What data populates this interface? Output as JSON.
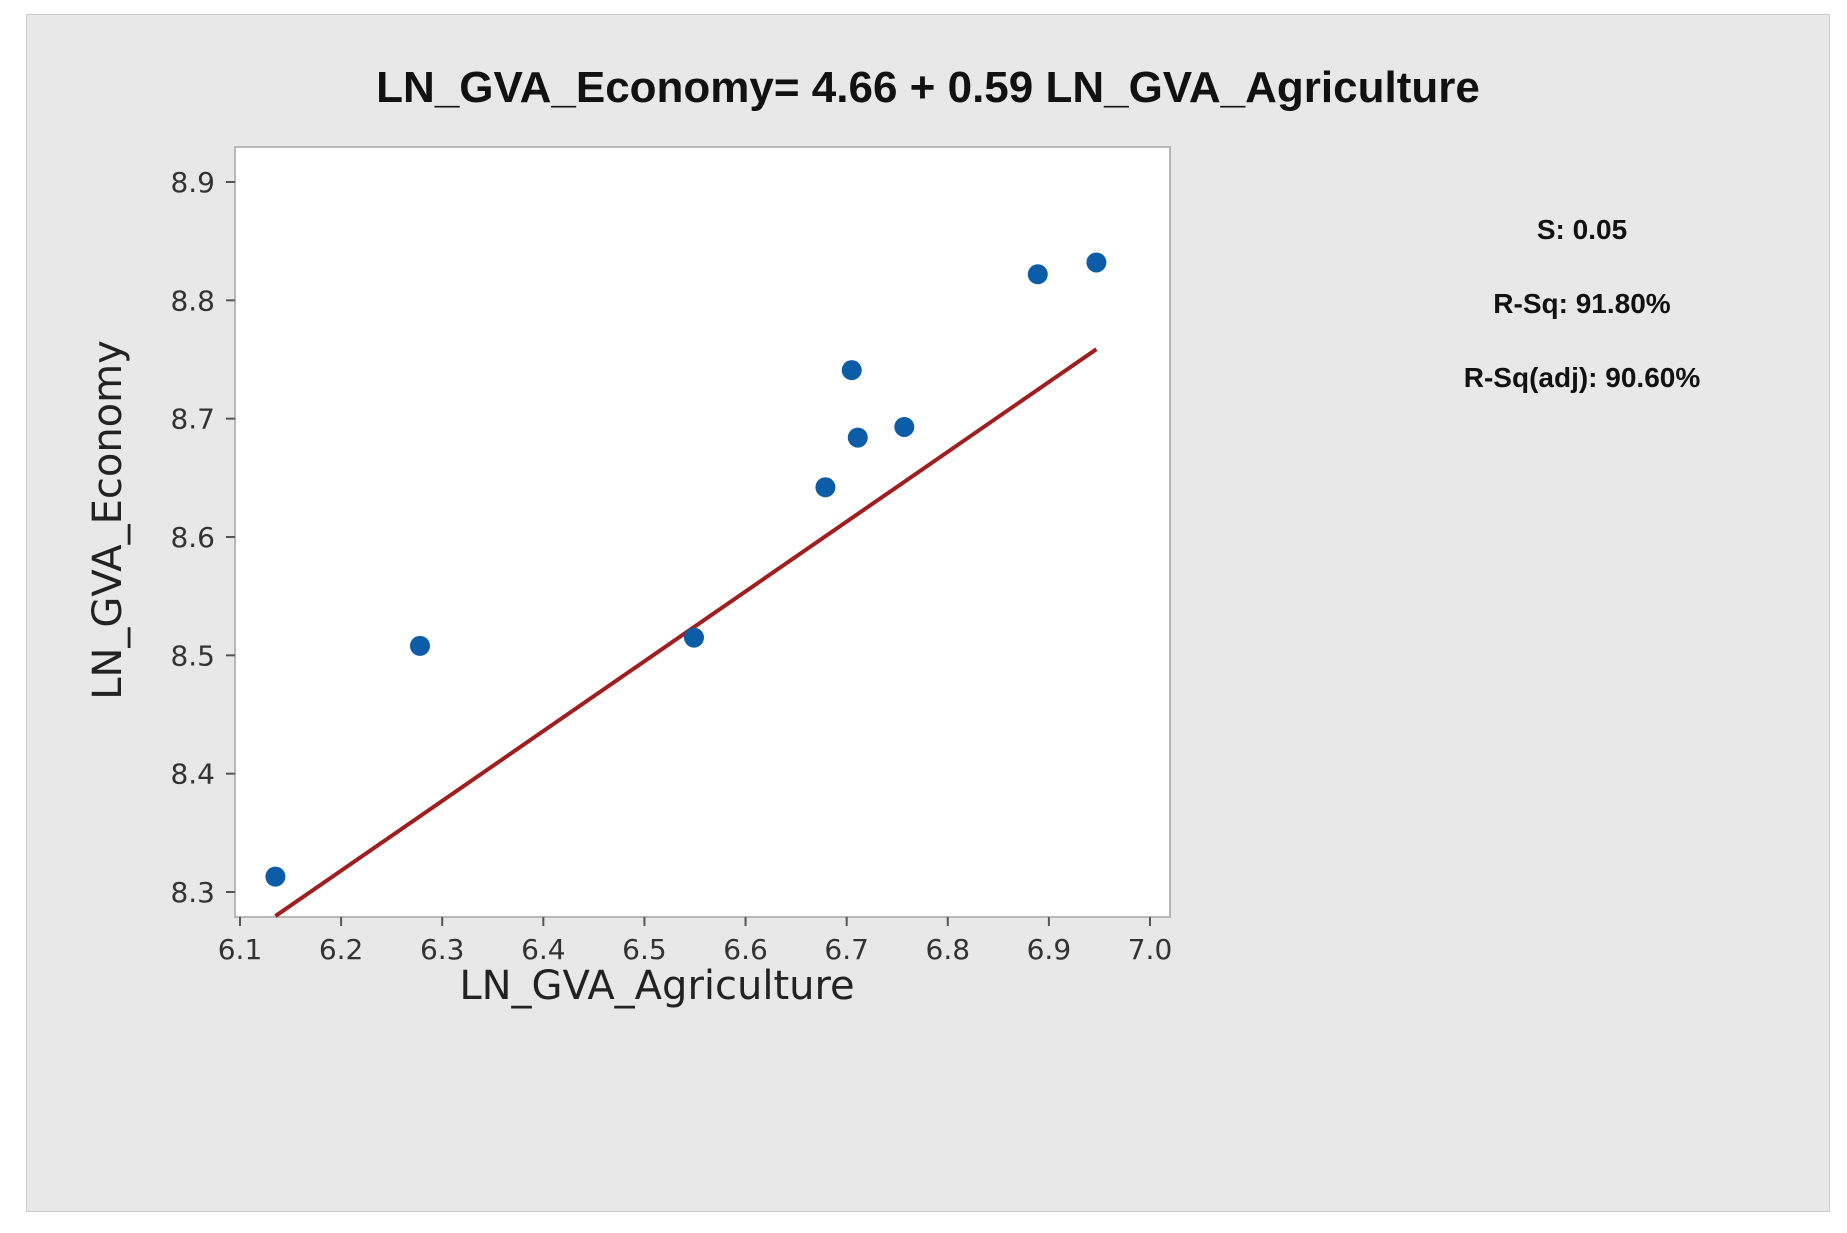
{
  "chart_data": {
    "type": "scatter",
    "title": "LN_GVA_Economy= 4.66 + 0.59 LN_GVA_Agriculture",
    "xlabel": "LN_GVA_Agriculture",
    "ylabel": "LN_GVA_Economy",
    "xlim": [
      6.1,
      7.0
    ],
    "ylim": [
      8.3,
      8.9
    ],
    "x_ticks": [
      "6.1",
      "6.2",
      "6.3",
      "6.4",
      "6.5",
      "6.6",
      "6.7",
      "6.8",
      "6.9",
      "7.0"
    ],
    "y_ticks": [
      "8.3",
      "8.4",
      "8.5",
      "8.6",
      "8.7",
      "8.8",
      "8.9"
    ],
    "grid": false,
    "points": [
      {
        "x": 6.135,
        "y": 8.313
      },
      {
        "x": 6.278,
        "y": 8.508
      },
      {
        "x": 6.549,
        "y": 8.515
      },
      {
        "x": 6.679,
        "y": 8.642
      },
      {
        "x": 6.705,
        "y": 8.741
      },
      {
        "x": 6.711,
        "y": 8.684
      },
      {
        "x": 6.757,
        "y": 8.693
      },
      {
        "x": 6.889,
        "y": 8.822
      },
      {
        "x": 6.947,
        "y": 8.832
      }
    ],
    "fit_line": {
      "intercept": 4.66,
      "slope": 0.59,
      "x_range": [
        6.135,
        6.947
      ]
    },
    "colors": {
      "points": "#0d5ca8",
      "fit_line": "#a01e1e",
      "panel": "#e8e8e8",
      "plot_area": "#ffffff"
    },
    "stats": {
      "s": "S: 0.05",
      "r_sq": "R-Sq: 91.80%",
      "r_sq_adj": "R-Sq(adj): 90.60%"
    }
  }
}
